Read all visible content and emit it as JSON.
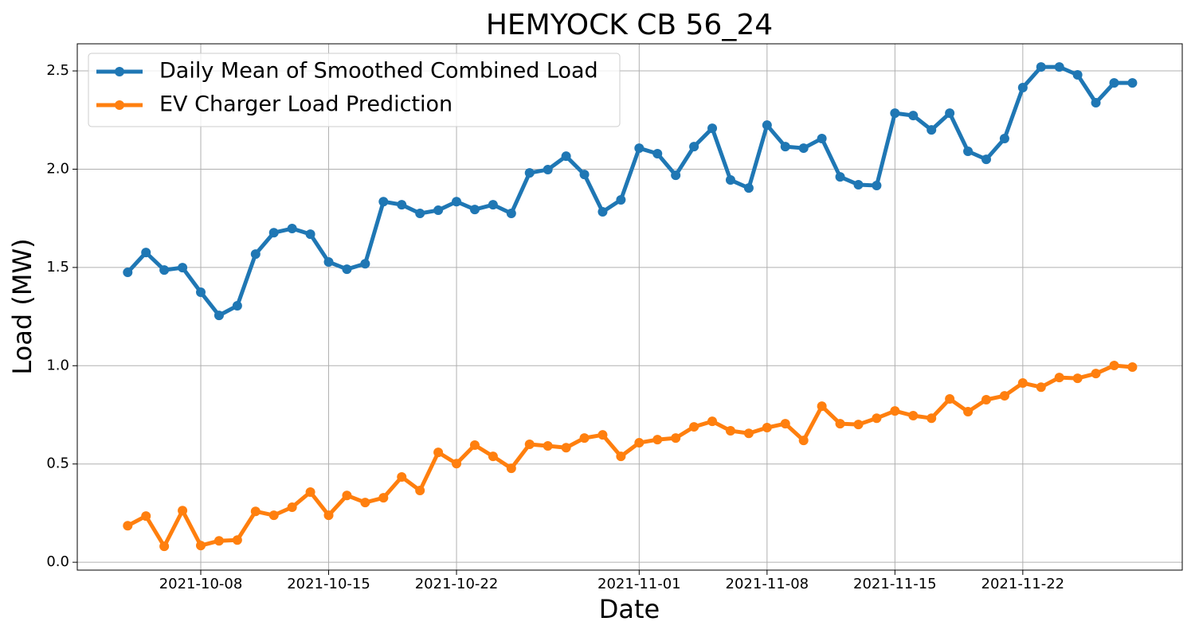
{
  "chart_data": {
    "type": "line",
    "title": "HEMYOCK CB 56_24",
    "xlabel": "Date",
    "ylabel": "Load (MW)",
    "x": [
      "2021-10-04",
      "2021-10-05",
      "2021-10-06",
      "2021-10-07",
      "2021-10-08",
      "2021-10-09",
      "2021-10-10",
      "2021-10-11",
      "2021-10-12",
      "2021-10-13",
      "2021-10-14",
      "2021-10-15",
      "2021-10-16",
      "2021-10-17",
      "2021-10-18",
      "2021-10-19",
      "2021-10-20",
      "2021-10-21",
      "2021-10-22",
      "2021-10-23",
      "2021-10-24",
      "2021-10-25",
      "2021-10-26",
      "2021-10-27",
      "2021-10-28",
      "2021-10-29",
      "2021-10-30",
      "2021-10-31",
      "2021-11-01",
      "2021-11-02",
      "2021-11-03",
      "2021-11-04",
      "2021-11-05",
      "2021-11-06",
      "2021-11-07",
      "2021-11-08",
      "2021-11-09",
      "2021-11-10",
      "2021-11-11",
      "2021-11-12",
      "2021-11-13",
      "2021-11-14",
      "2021-11-15",
      "2021-11-16",
      "2021-11-17",
      "2021-11-18",
      "2021-11-19",
      "2021-11-20",
      "2021-11-21",
      "2021-11-22",
      "2021-11-23",
      "2021-11-24",
      "2021-11-25",
      "2021-11-26",
      "2021-11-27",
      "2021-11-28"
    ],
    "series": [
      {
        "name": "Daily Mean of Smoothed Combined Load",
        "color": "#1f77b4",
        "values": [
          1.475,
          1.576,
          1.487,
          1.499,
          1.374,
          1.256,
          1.305,
          1.568,
          1.677,
          1.698,
          1.669,
          1.528,
          1.491,
          1.519,
          1.835,
          1.819,
          1.775,
          1.791,
          1.835,
          1.795,
          1.819,
          1.775,
          1.981,
          1.998,
          2.066,
          1.973,
          1.783,
          1.844,
          2.107,
          2.079,
          1.969,
          2.115,
          2.208,
          1.945,
          1.904,
          2.224,
          2.115,
          2.107,
          2.156,
          1.961,
          1.921,
          1.917,
          2.285,
          2.273,
          2.2,
          2.285,
          2.091,
          2.05,
          2.156,
          2.415,
          2.52,
          2.52,
          2.48,
          2.338,
          2.439,
          2.439
        ]
      },
      {
        "name": "EV Charger Load Prediction",
        "color": "#ff7f0e",
        "values": [
          0.186,
          0.235,
          0.081,
          0.263,
          0.085,
          0.109,
          0.113,
          0.259,
          0.239,
          0.28,
          0.357,
          0.239,
          0.34,
          0.304,
          0.328,
          0.434,
          0.365,
          0.559,
          0.502,
          0.596,
          0.539,
          0.478,
          0.6,
          0.592,
          0.583,
          0.632,
          0.648,
          0.539,
          0.608,
          0.624,
          0.632,
          0.689,
          0.717,
          0.669,
          0.656,
          0.685,
          0.705,
          0.62,
          0.794,
          0.705,
          0.701,
          0.733,
          0.77,
          0.746,
          0.733,
          0.831,
          0.766,
          0.827,
          0.847,
          0.912,
          0.891,
          0.94,
          0.936,
          0.96,
          1.001,
          0.993
        ]
      }
    ],
    "xlim": [
      "2021-10-01T05:45",
      "2021-11-30T17:30"
    ],
    "xticks": [
      "2021-10-08",
      "2021-10-15",
      "2021-10-22",
      "2021-11-01",
      "2021-11-08",
      "2021-11-15",
      "2021-11-22"
    ],
    "ylim": [
      -0.04,
      2.638
    ],
    "yticks": [
      {
        "value": 0,
        "label": "0.0"
      },
      0.5,
      {
        "value": 1,
        "label": "1.0"
      },
      1.5,
      {
        "value": 2,
        "label": "2.0"
      },
      2.5
    ],
    "grid": true,
    "legend": "upper left"
  }
}
